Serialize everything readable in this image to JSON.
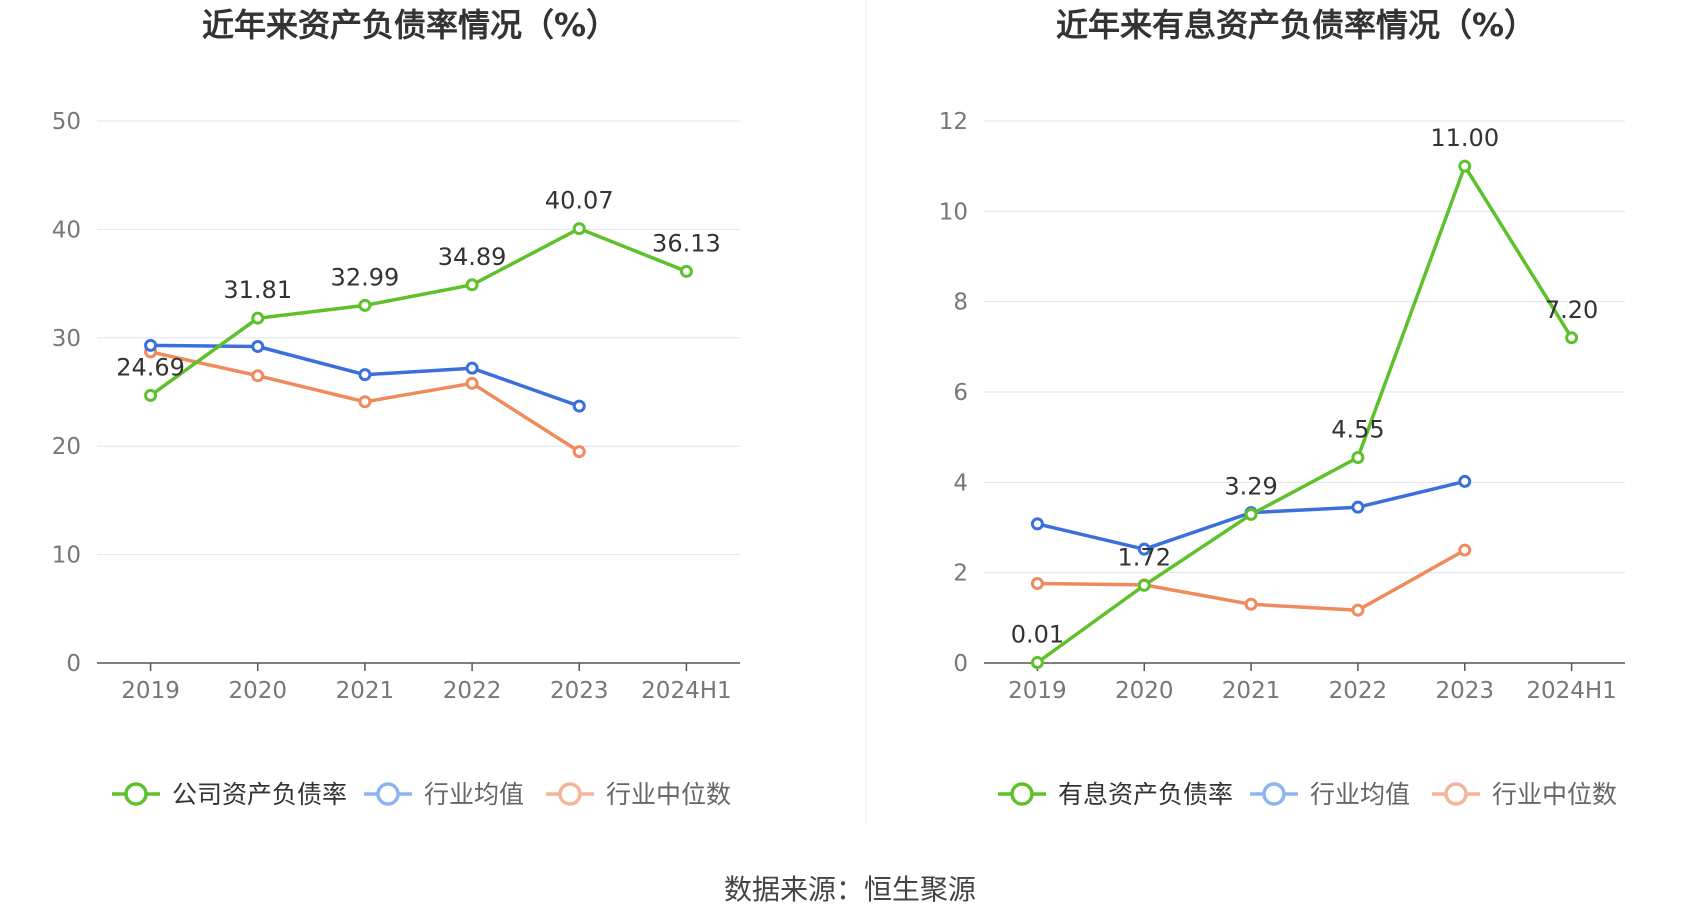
{
  "source": "数据来源：恒生聚源",
  "colors": {
    "company": "#5ec12b",
    "avg": "#3a6fdc",
    "median": "#f08a5d",
    "avg_legend": "#8db3f2",
    "median_legend": "#f5b39a",
    "grid": "#dde3ee",
    "axis": "#555555",
    "tick": "#777777",
    "label": "#333333",
    "title": "#333333"
  },
  "chart_data": [
    {
      "type": "line",
      "title": "近年来资产负债率情况（%）",
      "categories": [
        "2019",
        "2020",
        "2021",
        "2022",
        "2023",
        "2024H1"
      ],
      "ylim": [
        0,
        50
      ],
      "yticks": [
        0,
        10,
        20,
        30,
        40,
        50
      ],
      "grid": true,
      "legend_position": "bottom",
      "series": [
        {
          "name": "公司资产负债率",
          "color_key": "company",
          "legend_color_key": "company",
          "values": [
            24.69,
            31.81,
            32.99,
            34.89,
            40.07,
            36.13
          ],
          "labels": [
            "24.69",
            "31.81",
            "32.99",
            "34.89",
            "40.07",
            "36.13"
          ]
        },
        {
          "name": "行业均值",
          "color_key": "avg",
          "legend_color_key": "avg_legend",
          "values": [
            29.3,
            29.2,
            26.6,
            27.2,
            23.7,
            null
          ]
        },
        {
          "name": "行业中位数",
          "color_key": "median",
          "legend_color_key": "median_legend",
          "values": [
            28.7,
            26.5,
            24.1,
            25.8,
            19.5,
            null
          ]
        }
      ]
    },
    {
      "type": "line",
      "title": "近年来有息资产负债率情况（%）",
      "categories": [
        "2019",
        "2020",
        "2021",
        "2022",
        "2023",
        "2024H1"
      ],
      "ylim": [
        0,
        12
      ],
      "yticks": [
        0,
        2,
        4,
        6,
        8,
        10,
        12
      ],
      "grid": true,
      "legend_position": "bottom",
      "series": [
        {
          "name": "有息资产负债率",
          "color_key": "company",
          "legend_color_key": "company",
          "values": [
            0.01,
            1.72,
            3.29,
            4.55,
            11.0,
            7.2
          ],
          "labels": [
            "0.01",
            "1.72",
            "3.29",
            "4.55",
            "11.00",
            "7.20"
          ]
        },
        {
          "name": "行业均值",
          "color_key": "avg",
          "legend_color_key": "avg_legend",
          "values": [
            3.08,
            2.52,
            3.33,
            3.45,
            4.02,
            null
          ]
        },
        {
          "name": "行业中位数",
          "color_key": "median",
          "legend_color_key": "median_legend",
          "values": [
            1.76,
            1.73,
            1.3,
            1.17,
            2.5,
            null
          ]
        }
      ]
    }
  ]
}
